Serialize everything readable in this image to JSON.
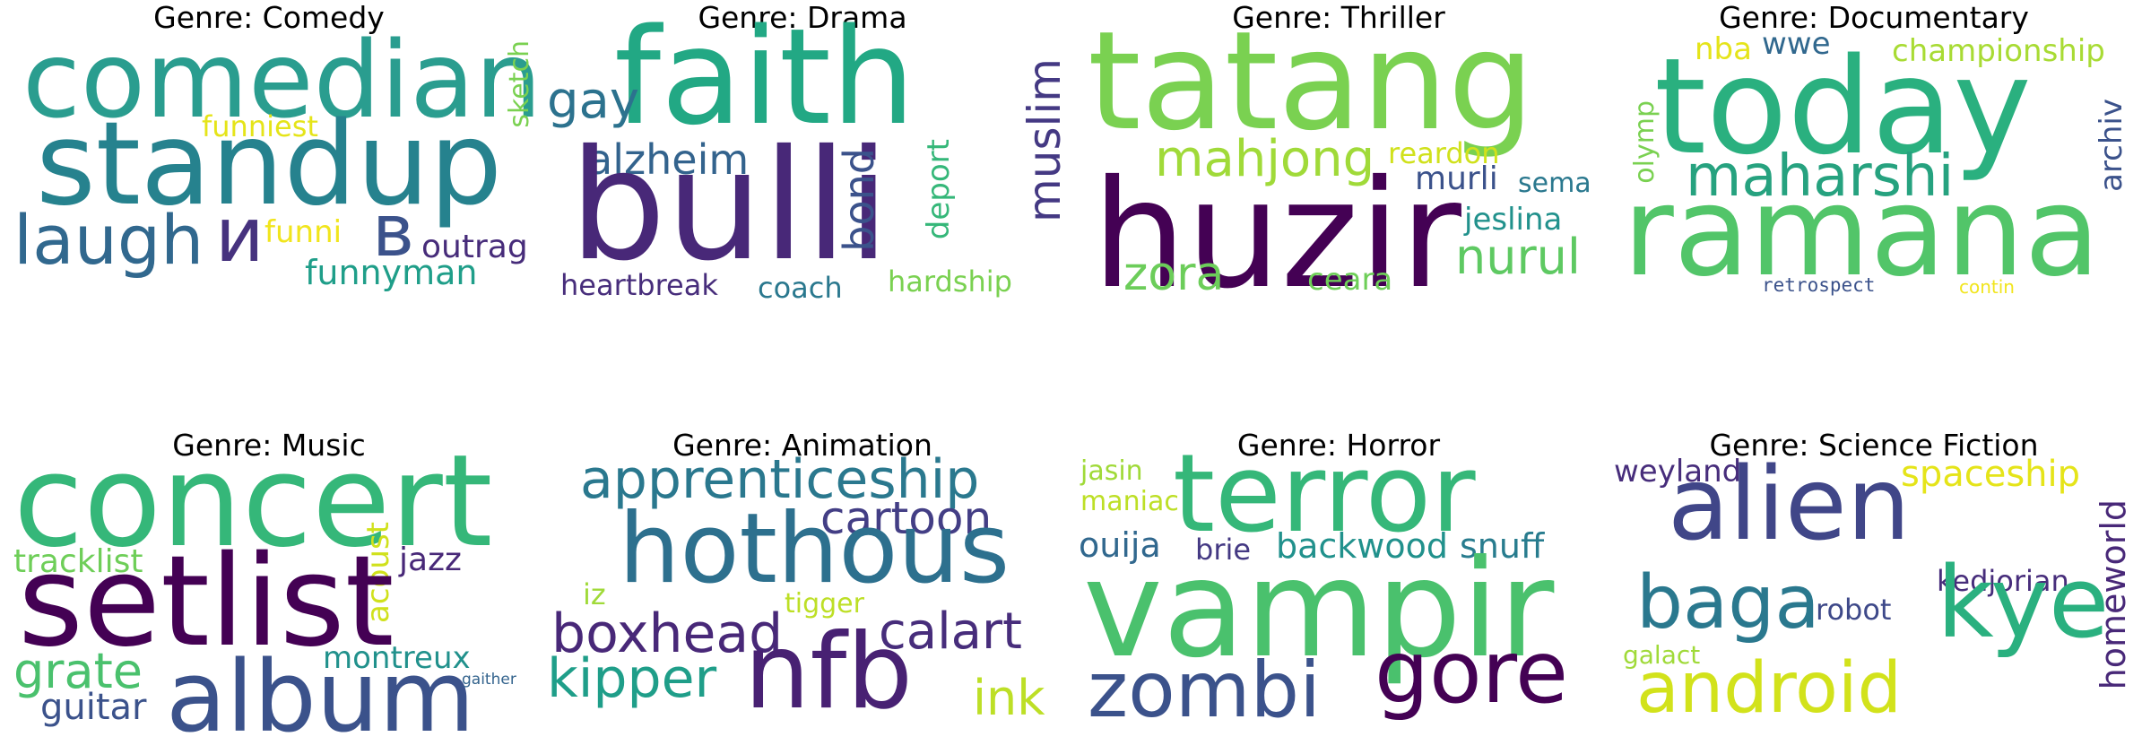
{
  "panels": [
    {
      "title": "Genre: Comedy",
      "words": [
        {
          "text": "comedian",
          "color": "#2a9d8f"
        },
        {
          "text": "standup",
          "color": "#26828e"
        },
        {
          "text": "funniest",
          "color": "#e5e419"
        },
        {
          "text": "sketch",
          "color": "#7ad151"
        },
        {
          "text": "laugh",
          "color": "#31688e"
        },
        {
          "text": "и",
          "color": "#46327e"
        },
        {
          "text": "в",
          "color": "#3b528b"
        },
        {
          "text": "funni",
          "color": "#f1e51d"
        },
        {
          "text": "outrag",
          "color": "#472c7a"
        },
        {
          "text": "funnyman",
          "color": "#1f9e89"
        }
      ]
    },
    {
      "title": "Genre: Drama",
      "words": [
        {
          "text": "faith",
          "color": "#22a884"
        },
        {
          "text": "gay",
          "color": "#2c728e"
        },
        {
          "text": "muslim",
          "color": "#443983"
        },
        {
          "text": "alzheim",
          "color": "#33638d"
        },
        {
          "text": "bulli",
          "color": "#482878"
        },
        {
          "text": "bond",
          "color": "#3b528b"
        },
        {
          "text": "deport",
          "color": "#35b779"
        },
        {
          "text": "heartbreak",
          "color": "#472d7b"
        },
        {
          "text": "coach",
          "color": "#2a788e"
        },
        {
          "text": "hardship",
          "color": "#7ad151"
        }
      ]
    },
    {
      "title": "Genre: Thriller",
      "words": [
        {
          "text": "tatang",
          "color": "#7ad151"
        },
        {
          "text": "mahjong",
          "color": "#a0da39"
        },
        {
          "text": "reardon",
          "color": "#d0e11c"
        },
        {
          "text": "murli",
          "color": "#3b528b"
        },
        {
          "text": "sema",
          "color": "#2a788e"
        },
        {
          "text": "huzir",
          "color": "#440154"
        },
        {
          "text": "jeslina",
          "color": "#21918c"
        },
        {
          "text": "nurul",
          "color": "#5ec962"
        },
        {
          "text": "zora",
          "color": "#6ccd5a"
        },
        {
          "text": "ceara",
          "color": "#6ece58"
        }
      ]
    },
    {
      "title": "Genre: Documentary",
      "words": [
        {
          "text": "nba",
          "color": "#e5e419"
        },
        {
          "text": "wwe",
          "color": "#31688e"
        },
        {
          "text": "championship",
          "color": "#a8db34"
        },
        {
          "text": "today",
          "color": "#2ab07f"
        },
        {
          "text": "olymp",
          "color": "#7ad151"
        },
        {
          "text": "archiv",
          "color": "#3b528b"
        },
        {
          "text": "maharshi",
          "color": "#26a27f"
        },
        {
          "text": "ramana",
          "color": "#52c569"
        },
        {
          "text": "retrospect",
          "color": "#3b528b"
        },
        {
          "text": "contin",
          "color": "#f1e51d"
        }
      ]
    },
    {
      "title": "Genre: Music",
      "words": [
        {
          "text": "concert",
          "color": "#35b779"
        },
        {
          "text": "tracklist",
          "color": "#6ece58"
        },
        {
          "text": "acoust",
          "color": "#d0e11c"
        },
        {
          "text": "jazz",
          "color": "#482878"
        },
        {
          "text": "setlist",
          "color": "#440154"
        },
        {
          "text": "grate",
          "color": "#4ac16d"
        },
        {
          "text": "montreux",
          "color": "#21918c"
        },
        {
          "text": "guitar",
          "color": "#3b528b"
        },
        {
          "text": "album",
          "color": "#3b528b"
        },
        {
          "text": "gaither",
          "color": "#33638d"
        }
      ]
    },
    {
      "title": "Genre: Animation",
      "words": [
        {
          "text": "apprenticeship",
          "color": "#2a788e"
        },
        {
          "text": "cartoon",
          "color": "#433e85"
        },
        {
          "text": "hothous",
          "color": "#2d708e"
        },
        {
          "text": "iz",
          "color": "#a0da39"
        },
        {
          "text": "tigger",
          "color": "#bddf26"
        },
        {
          "text": "boxhead",
          "color": "#482878"
        },
        {
          "text": "calart",
          "color": "#472d7b"
        },
        {
          "text": "kipper",
          "color": "#1f9e89"
        },
        {
          "text": "nfb",
          "color": "#482173"
        },
        {
          "text": "ink",
          "color": "#bddf26"
        }
      ]
    },
    {
      "title": "Genre: Horror",
      "words": [
        {
          "text": "jasin",
          "color": "#a0da39"
        },
        {
          "text": "maniac",
          "color": "#bddf26"
        },
        {
          "text": "terror",
          "color": "#35b779"
        },
        {
          "text": "ouija",
          "color": "#31688e"
        },
        {
          "text": "brie",
          "color": "#443983"
        },
        {
          "text": "backwood",
          "color": "#21918c"
        },
        {
          "text": "snuff",
          "color": "#287c8e"
        },
        {
          "text": "vampir",
          "color": "#4ac16d"
        },
        {
          "text": "zombi",
          "color": "#3b528b"
        },
        {
          "text": "gore",
          "color": "#440154"
        }
      ]
    },
    {
      "title": "Genre: Science Fiction",
      "words": [
        {
          "text": "weyland",
          "color": "#472d7b"
        },
        {
          "text": "spaceship",
          "color": "#e5e419"
        },
        {
          "text": "alien",
          "color": "#404688"
        },
        {
          "text": "homeworld",
          "color": "#482878"
        },
        {
          "text": "kedjorian",
          "color": "#472d7b"
        },
        {
          "text": "baga",
          "color": "#2a788e"
        },
        {
          "text": "robot",
          "color": "#3e4989"
        },
        {
          "text": "kye",
          "color": "#2ab07f"
        },
        {
          "text": "galact",
          "color": "#a0da39"
        },
        {
          "text": "android",
          "color": "#d2e21b"
        }
      ]
    }
  ]
}
